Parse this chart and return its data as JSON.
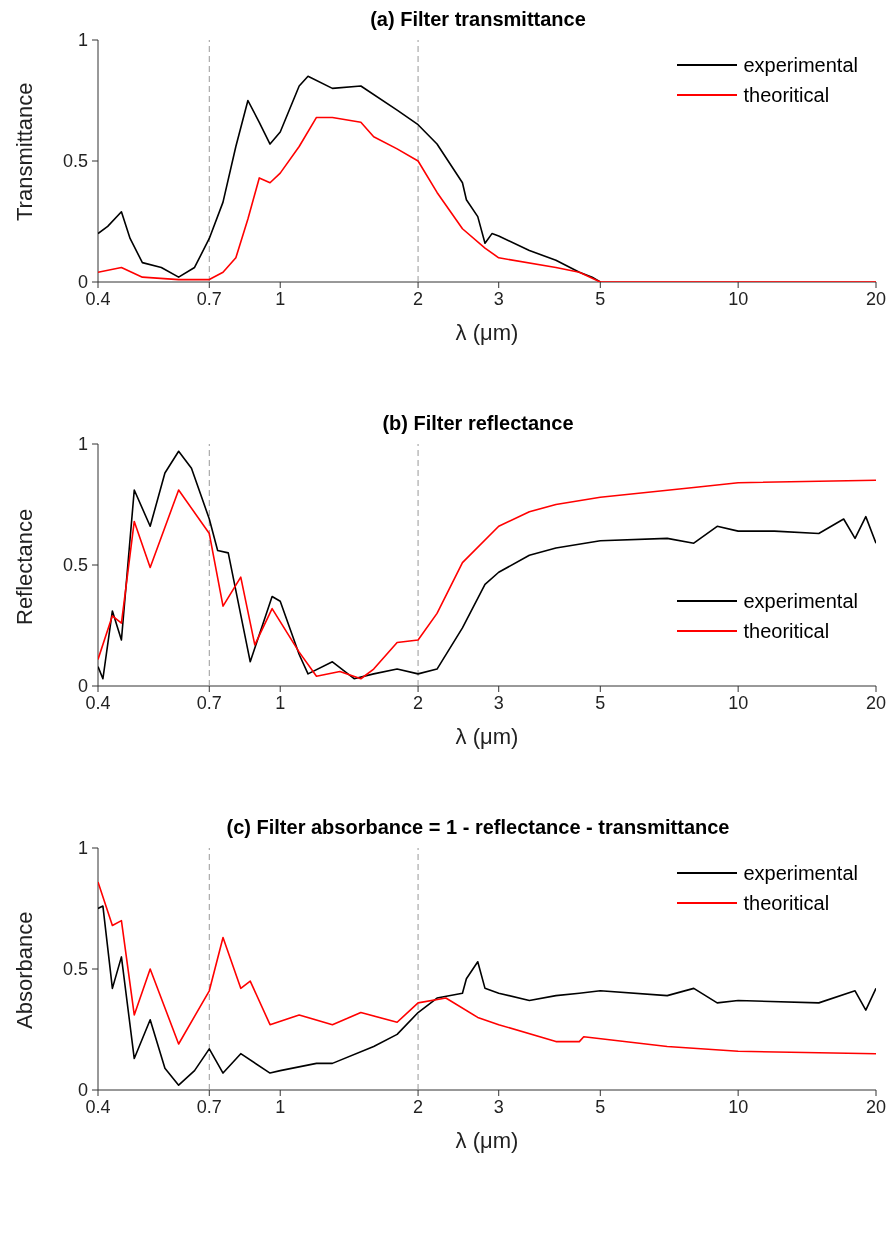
{
  "chart_data": [
    {
      "type": "line",
      "title": "(a) Filter transmittance",
      "xlabel": "λ (μm)",
      "ylabel": "Transmittance",
      "log": "x",
      "xlim": [
        0.4,
        20
      ],
      "xticks": [
        0.4,
        0.7,
        1,
        2,
        3,
        5,
        10,
        20
      ],
      "ylim": [
        0,
        1
      ],
      "yticks": [
        0,
        0.5,
        1
      ],
      "grid": false,
      "legend": "top right",
      "marker": "none",
      "line_style": "solid",
      "ref_lines": [
        {
          "axis": "x",
          "value": 0.7,
          "color": "#999999",
          "line_style": "dashed"
        },
        {
          "axis": "x",
          "value": 2,
          "color": "#999999",
          "line_style": "dashed"
        }
      ],
      "series": [
        {
          "name": "experimental",
          "color": "#000000",
          "x": [
            0.4,
            0.42,
            0.45,
            0.47,
            0.5,
            0.55,
            0.6,
            0.65,
            0.7,
            0.75,
            0.8,
            0.85,
            0.9,
            0.95,
            1.0,
            1.1,
            1.15,
            1.3,
            1.5,
            1.8,
            2.0,
            2.2,
            2.5,
            2.55,
            2.7,
            2.8,
            2.9,
            3,
            3.5,
            4,
            4.5,
            4.8,
            5
          ],
          "values": [
            0.2,
            0.23,
            0.29,
            0.18,
            0.08,
            0.06,
            0.02,
            0.06,
            0.18,
            0.33,
            0.56,
            0.75,
            0.66,
            0.57,
            0.62,
            0.81,
            0.85,
            0.8,
            0.81,
            0.71,
            0.65,
            0.57,
            0.41,
            0.34,
            0.27,
            0.16,
            0.2,
            0.19,
            0.13,
            0.09,
            0.04,
            0.02,
            0
          ]
        },
        {
          "name": "theoritical",
          "color": "#ff0000",
          "x": [
            0.4,
            0.45,
            0.5,
            0.6,
            0.7,
            0.75,
            0.8,
            0.85,
            0.9,
            0.95,
            1.0,
            1.1,
            1.2,
            1.3,
            1.5,
            1.6,
            1.8,
            2.0,
            2.2,
            2.5,
            2.8,
            3,
            4,
            4.5,
            5,
            7,
            10,
            20
          ],
          "values": [
            0.04,
            0.06,
            0.02,
            0.01,
            0.01,
            0.04,
            0.1,
            0.26,
            0.43,
            0.41,
            0.45,
            0.56,
            0.68,
            0.68,
            0.66,
            0.6,
            0.55,
            0.5,
            0.37,
            0.22,
            0.14,
            0.1,
            0.06,
            0.04,
            0,
            0,
            0,
            0
          ]
        }
      ]
    },
    {
      "type": "line",
      "title": "(b) Filter reflectance",
      "xlabel": "λ (μm)",
      "ylabel": "Reflectance",
      "log": "x",
      "xlim": [
        0.4,
        20
      ],
      "xticks": [
        0.4,
        0.7,
        1,
        2,
        3,
        5,
        10,
        20
      ],
      "ylim": [
        0,
        1
      ],
      "yticks": [
        0,
        0.5,
        1
      ],
      "grid": false,
      "legend": "right",
      "marker": "none",
      "line_style": "solid",
      "ref_lines": [
        {
          "axis": "x",
          "value": 0.7,
          "color": "#999999",
          "line_style": "dashed"
        },
        {
          "axis": "x",
          "value": 2,
          "color": "#999999",
          "line_style": "dashed"
        }
      ],
      "series": [
        {
          "name": "experimental",
          "color": "#000000",
          "x": [
            0.4,
            0.41,
            0.43,
            0.45,
            0.48,
            0.52,
            0.56,
            0.6,
            0.64,
            0.7,
            0.73,
            0.77,
            0.86,
            0.96,
            1.0,
            1.1,
            1.15,
            1.3,
            1.45,
            1.6,
            1.8,
            2.0,
            2.2,
            2.5,
            2.8,
            3,
            3.5,
            4,
            5,
            7,
            8,
            9,
            10,
            12,
            15,
            17,
            18,
            19,
            20
          ],
          "values": [
            0.08,
            0.03,
            0.31,
            0.19,
            0.81,
            0.66,
            0.88,
            0.97,
            0.9,
            0.69,
            0.56,
            0.55,
            0.1,
            0.37,
            0.35,
            0.13,
            0.05,
            0.1,
            0.03,
            0.05,
            0.07,
            0.05,
            0.07,
            0.24,
            0.42,
            0.47,
            0.54,
            0.57,
            0.6,
            0.61,
            0.59,
            0.66,
            0.64,
            0.64,
            0.63,
            0.69,
            0.61,
            0.7,
            0.59
          ]
        },
        {
          "name": "theoritical",
          "color": "#ff0000",
          "x": [
            0.4,
            0.43,
            0.45,
            0.48,
            0.52,
            0.6,
            0.7,
            0.75,
            0.82,
            0.88,
            0.96,
            1.1,
            1.2,
            1.35,
            1.5,
            1.6,
            1.8,
            2.0,
            2.2,
            2.5,
            3,
            3.5,
            4,
            5,
            8,
            10,
            20
          ],
          "values": [
            0.11,
            0.29,
            0.26,
            0.68,
            0.49,
            0.81,
            0.63,
            0.33,
            0.45,
            0.17,
            0.32,
            0.14,
            0.04,
            0.06,
            0.03,
            0.07,
            0.18,
            0.19,
            0.3,
            0.51,
            0.66,
            0.72,
            0.75,
            0.78,
            0.82,
            0.84,
            0.85
          ]
        }
      ]
    },
    {
      "type": "line",
      "title": "(c) Filter absorbance = 1 - reflectance - transmittance",
      "xlabel": "λ (μm)",
      "ylabel": "Absorbance",
      "log": "x",
      "xlim": [
        0.4,
        20
      ],
      "xticks": [
        0.4,
        0.7,
        1,
        2,
        3,
        5,
        10,
        20
      ],
      "ylim": [
        0,
        1
      ],
      "yticks": [
        0,
        0.5,
        1
      ],
      "grid": false,
      "legend": "top right",
      "marker": "none",
      "line_style": "solid",
      "ref_lines": [
        {
          "axis": "x",
          "value": 0.7,
          "color": "#999999",
          "line_style": "dashed"
        },
        {
          "axis": "x",
          "value": 2,
          "color": "#999999",
          "line_style": "dashed"
        }
      ],
      "series": [
        {
          "name": "experimental",
          "color": "#000000",
          "x": [
            0.4,
            0.41,
            0.43,
            0.45,
            0.48,
            0.52,
            0.56,
            0.6,
            0.65,
            0.7,
            0.75,
            0.82,
            0.95,
            1.0,
            1.2,
            1.3,
            1.6,
            1.8,
            2.0,
            2.2,
            2.5,
            2.55,
            2.7,
            2.8,
            3,
            3.5,
            4,
            4.5,
            5,
            7,
            8,
            9,
            10,
            15,
            18,
            19,
            20
          ],
          "values": [
            0.75,
            0.76,
            0.42,
            0.55,
            0.13,
            0.29,
            0.09,
            0.02,
            0.08,
            0.17,
            0.07,
            0.15,
            0.07,
            0.08,
            0.11,
            0.11,
            0.18,
            0.23,
            0.32,
            0.38,
            0.4,
            0.46,
            0.53,
            0.42,
            0.4,
            0.37,
            0.39,
            0.4,
            0.41,
            0.39,
            0.42,
            0.36,
            0.37,
            0.36,
            0.41,
            0.33,
            0.42
          ]
        },
        {
          "name": "theoritical",
          "color": "#ff0000",
          "x": [
            0.4,
            0.43,
            0.45,
            0.48,
            0.52,
            0.6,
            0.7,
            0.75,
            0.82,
            0.86,
            0.95,
            1.1,
            1.3,
            1.5,
            1.8,
            2.0,
            2.3,
            2.7,
            3,
            4,
            4.5,
            4.6,
            7,
            10,
            20
          ],
          "values": [
            0.86,
            0.68,
            0.7,
            0.31,
            0.5,
            0.19,
            0.41,
            0.63,
            0.42,
            0.45,
            0.27,
            0.31,
            0.27,
            0.32,
            0.28,
            0.36,
            0.38,
            0.3,
            0.27,
            0.2,
            0.2,
            0.22,
            0.18,
            0.16,
            0.15
          ]
        }
      ]
    }
  ]
}
